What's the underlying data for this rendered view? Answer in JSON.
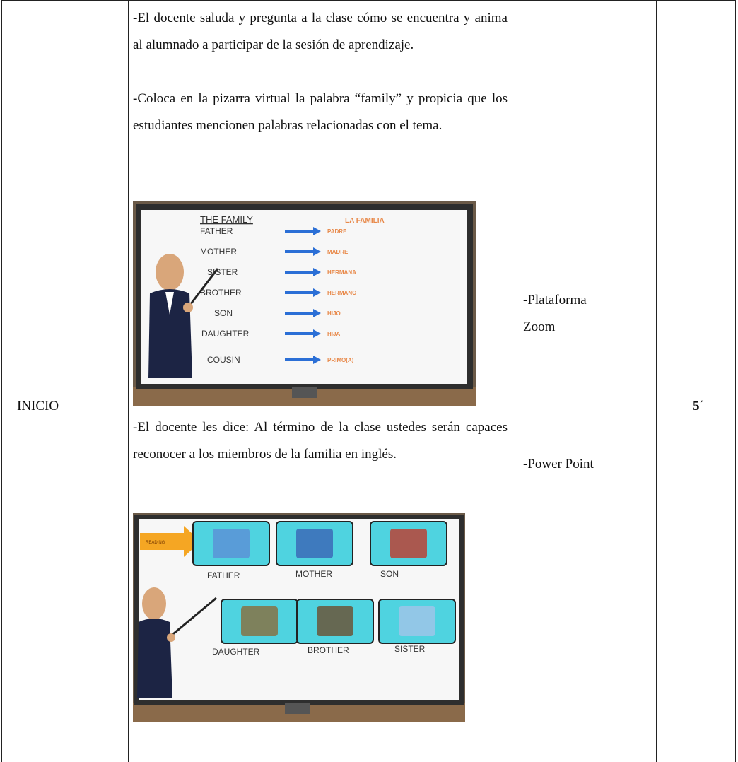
{
  "table": {
    "phase": "INICIO",
    "activity": {
      "paragraphs": [
        "-El docente saluda y pregunta a la clase cómo se encuentra y anima al alumnado a participar de la sesión de aprendizaje.",
        "-Coloca en la pizarra virtual la palabra “family” y propicia que los estudiantes mencionen palabras relacionadas con el tema.",
        "-El docente les dice: Al término de la clase ustedes serán capaces reconocer a los miembros de la familia en inglés."
      ],
      "slide_1": {
        "title": "THE FAMILY",
        "title_translation": "LA FAMILIA",
        "words": [
          {
            "english": "FATHER",
            "spanish": "PADRE"
          },
          {
            "english": "MOTHER",
            "spanish": "MADRE"
          },
          {
            "english": "SISTER",
            "spanish": "HERMANA"
          },
          {
            "english": "BROTHER",
            "spanish": "HERMANO"
          },
          {
            "english": "SON",
            "spanish": "HIJO"
          },
          {
            "english": "DAUGHTER",
            "spanish": "HIJA"
          },
          {
            "english": "COUSIN",
            "spanish": "PRIMO(A)"
          }
        ]
      },
      "slide_2": {
        "tag": "READING",
        "cards": [
          "FATHER",
          "MOTHER",
          "SON",
          "DAUGHTER",
          "BROTHER",
          "SISTER"
        ]
      }
    },
    "resources": [
      [
        "-Plataforma",
        "Zoom"
      ],
      [
        "-Power Point"
      ]
    ],
    "time": "5´"
  }
}
